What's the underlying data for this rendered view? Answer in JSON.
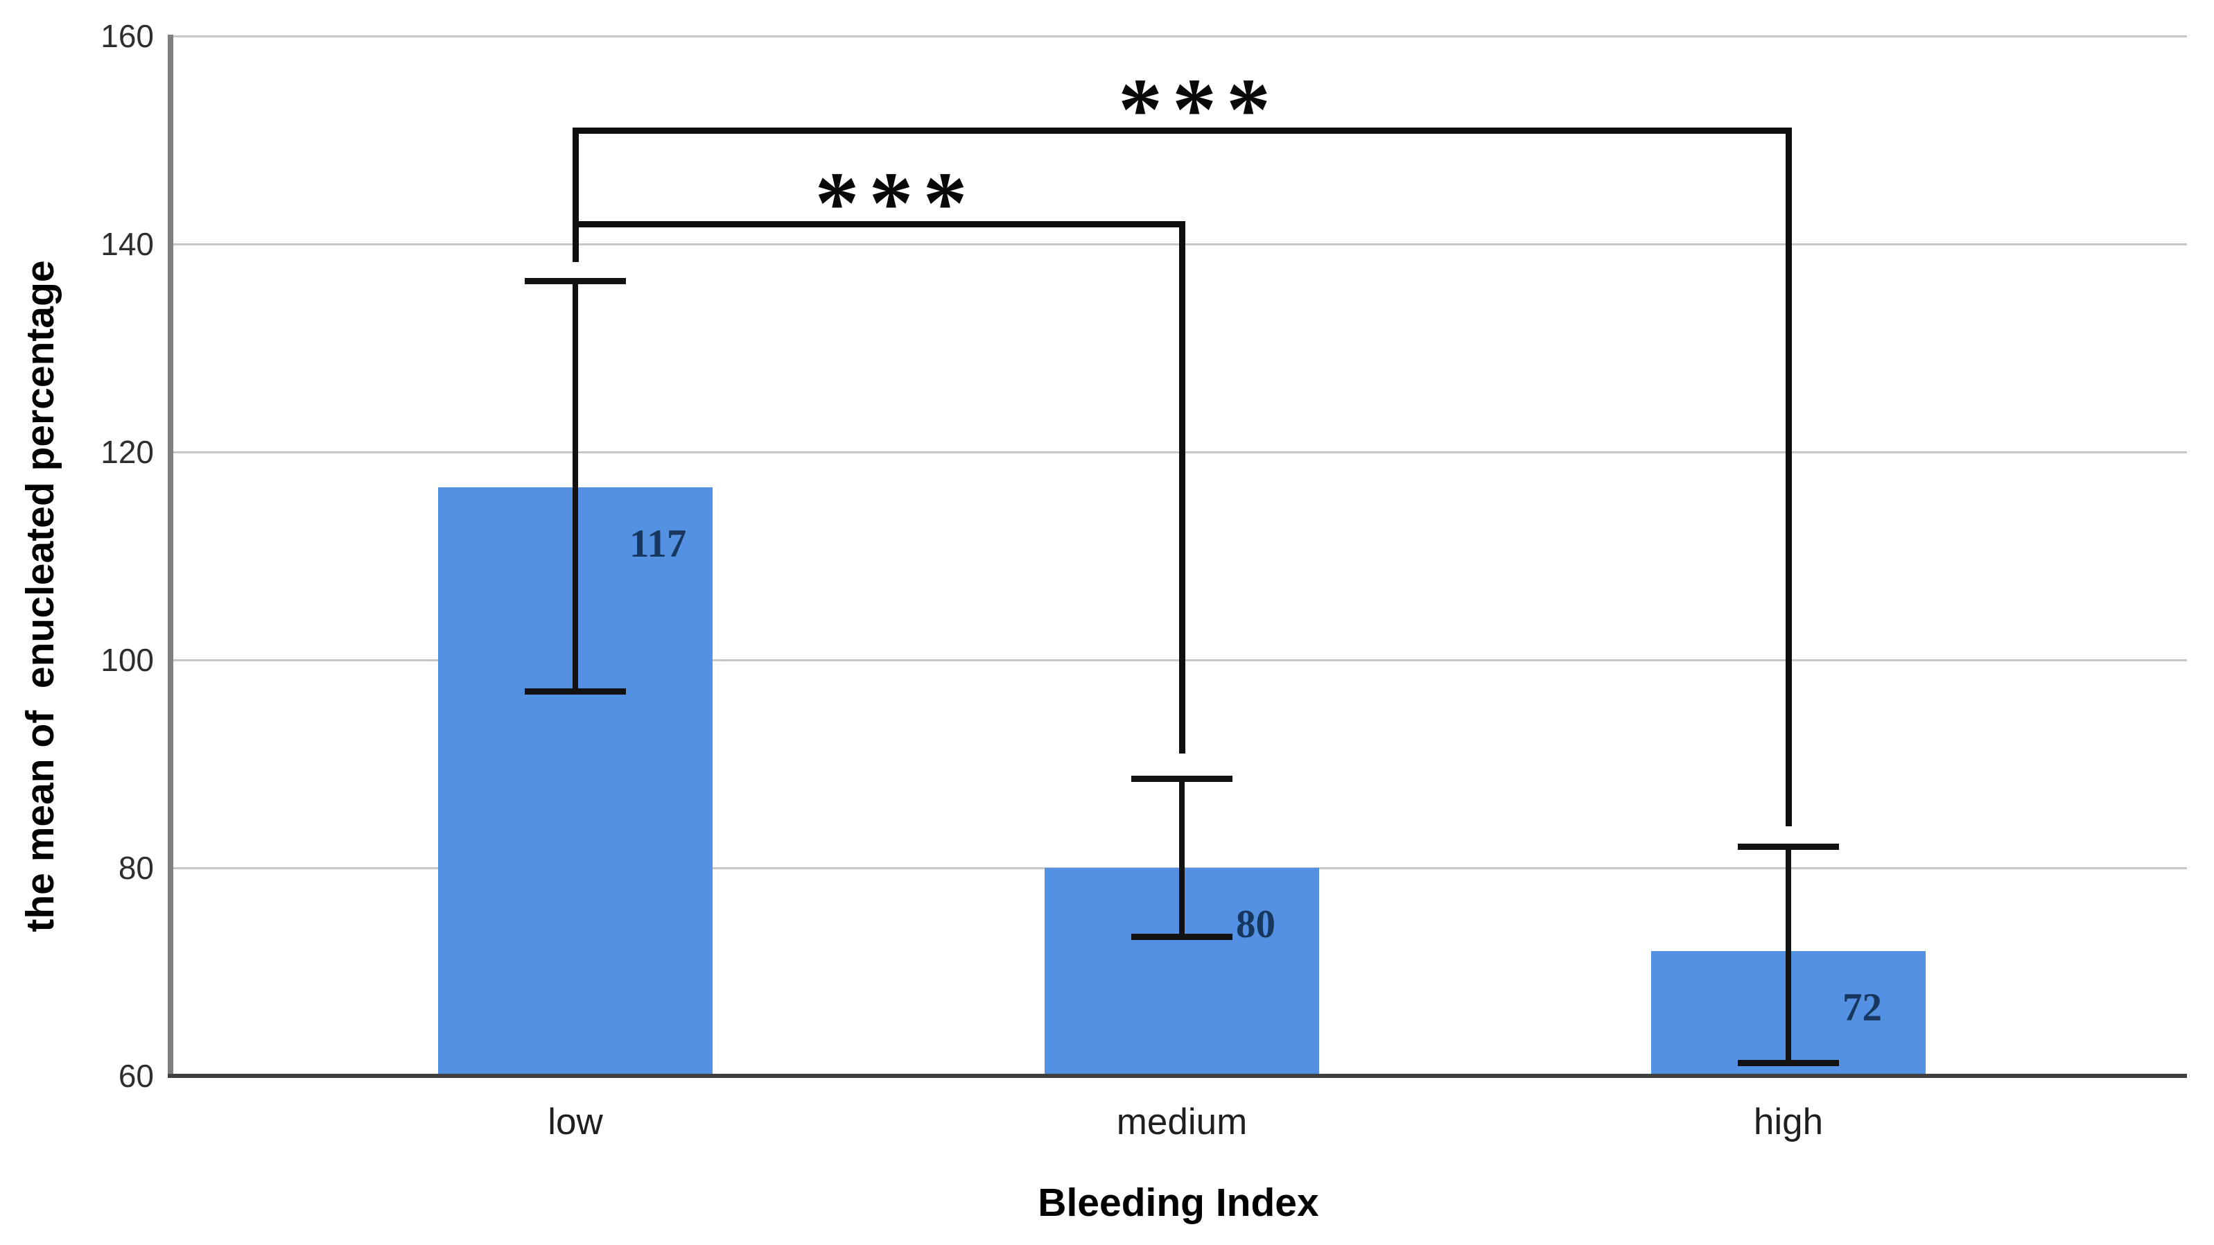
{
  "chart_data": {
    "type": "bar",
    "title": "",
    "xlabel": "Bleeding Index",
    "ylabel": "the mean of  enucleated percentage",
    "categories": [
      "low",
      "medium",
      "high"
    ],
    "values": [
      117,
      80,
      72
    ],
    "value_labels": [
      "117",
      "80",
      "72"
    ],
    "bar_top_values": [
      116.6,
      80,
      72
    ],
    "series": [
      {
        "name": "mean of enucleated percentage",
        "values": [
          117,
          80,
          72
        ],
        "error_bars": [
          {
            "category": "low",
            "lower": 97,
            "upper": 136.5
          },
          {
            "category": "medium",
            "lower": 73.4,
            "upper": 88.6
          },
          {
            "category": "high",
            "lower": 61.3,
            "upper": 82.1
          }
        ]
      }
    ],
    "ylim": [
      60,
      160
    ],
    "yticks": [
      60,
      80,
      100,
      120,
      140,
      160
    ],
    "grid": true,
    "legend": "none",
    "significance_brackets": [
      {
        "from": "low",
        "to": "medium",
        "label": "***",
        "level": 142.2,
        "from_drop_to": 138.3,
        "to_drop_to": 91
      },
      {
        "from": "low",
        "to": "high",
        "label": "***",
        "level": 151.2,
        "from_drop_to": 138.3,
        "to_drop_to": 84
      }
    ],
    "colors": {
      "bar_fill": "#5591e2",
      "value_label": "#17375e",
      "gridline": "#c8c8c8",
      "y_axis": "#7f7f7f",
      "x_axis": "#404040",
      "error_bar": "#121212",
      "bracket": "#0f0f0f",
      "tick_text": "#2e2e2e",
      "category_text": "#1f1f1f",
      "title_text": "#000000"
    }
  }
}
